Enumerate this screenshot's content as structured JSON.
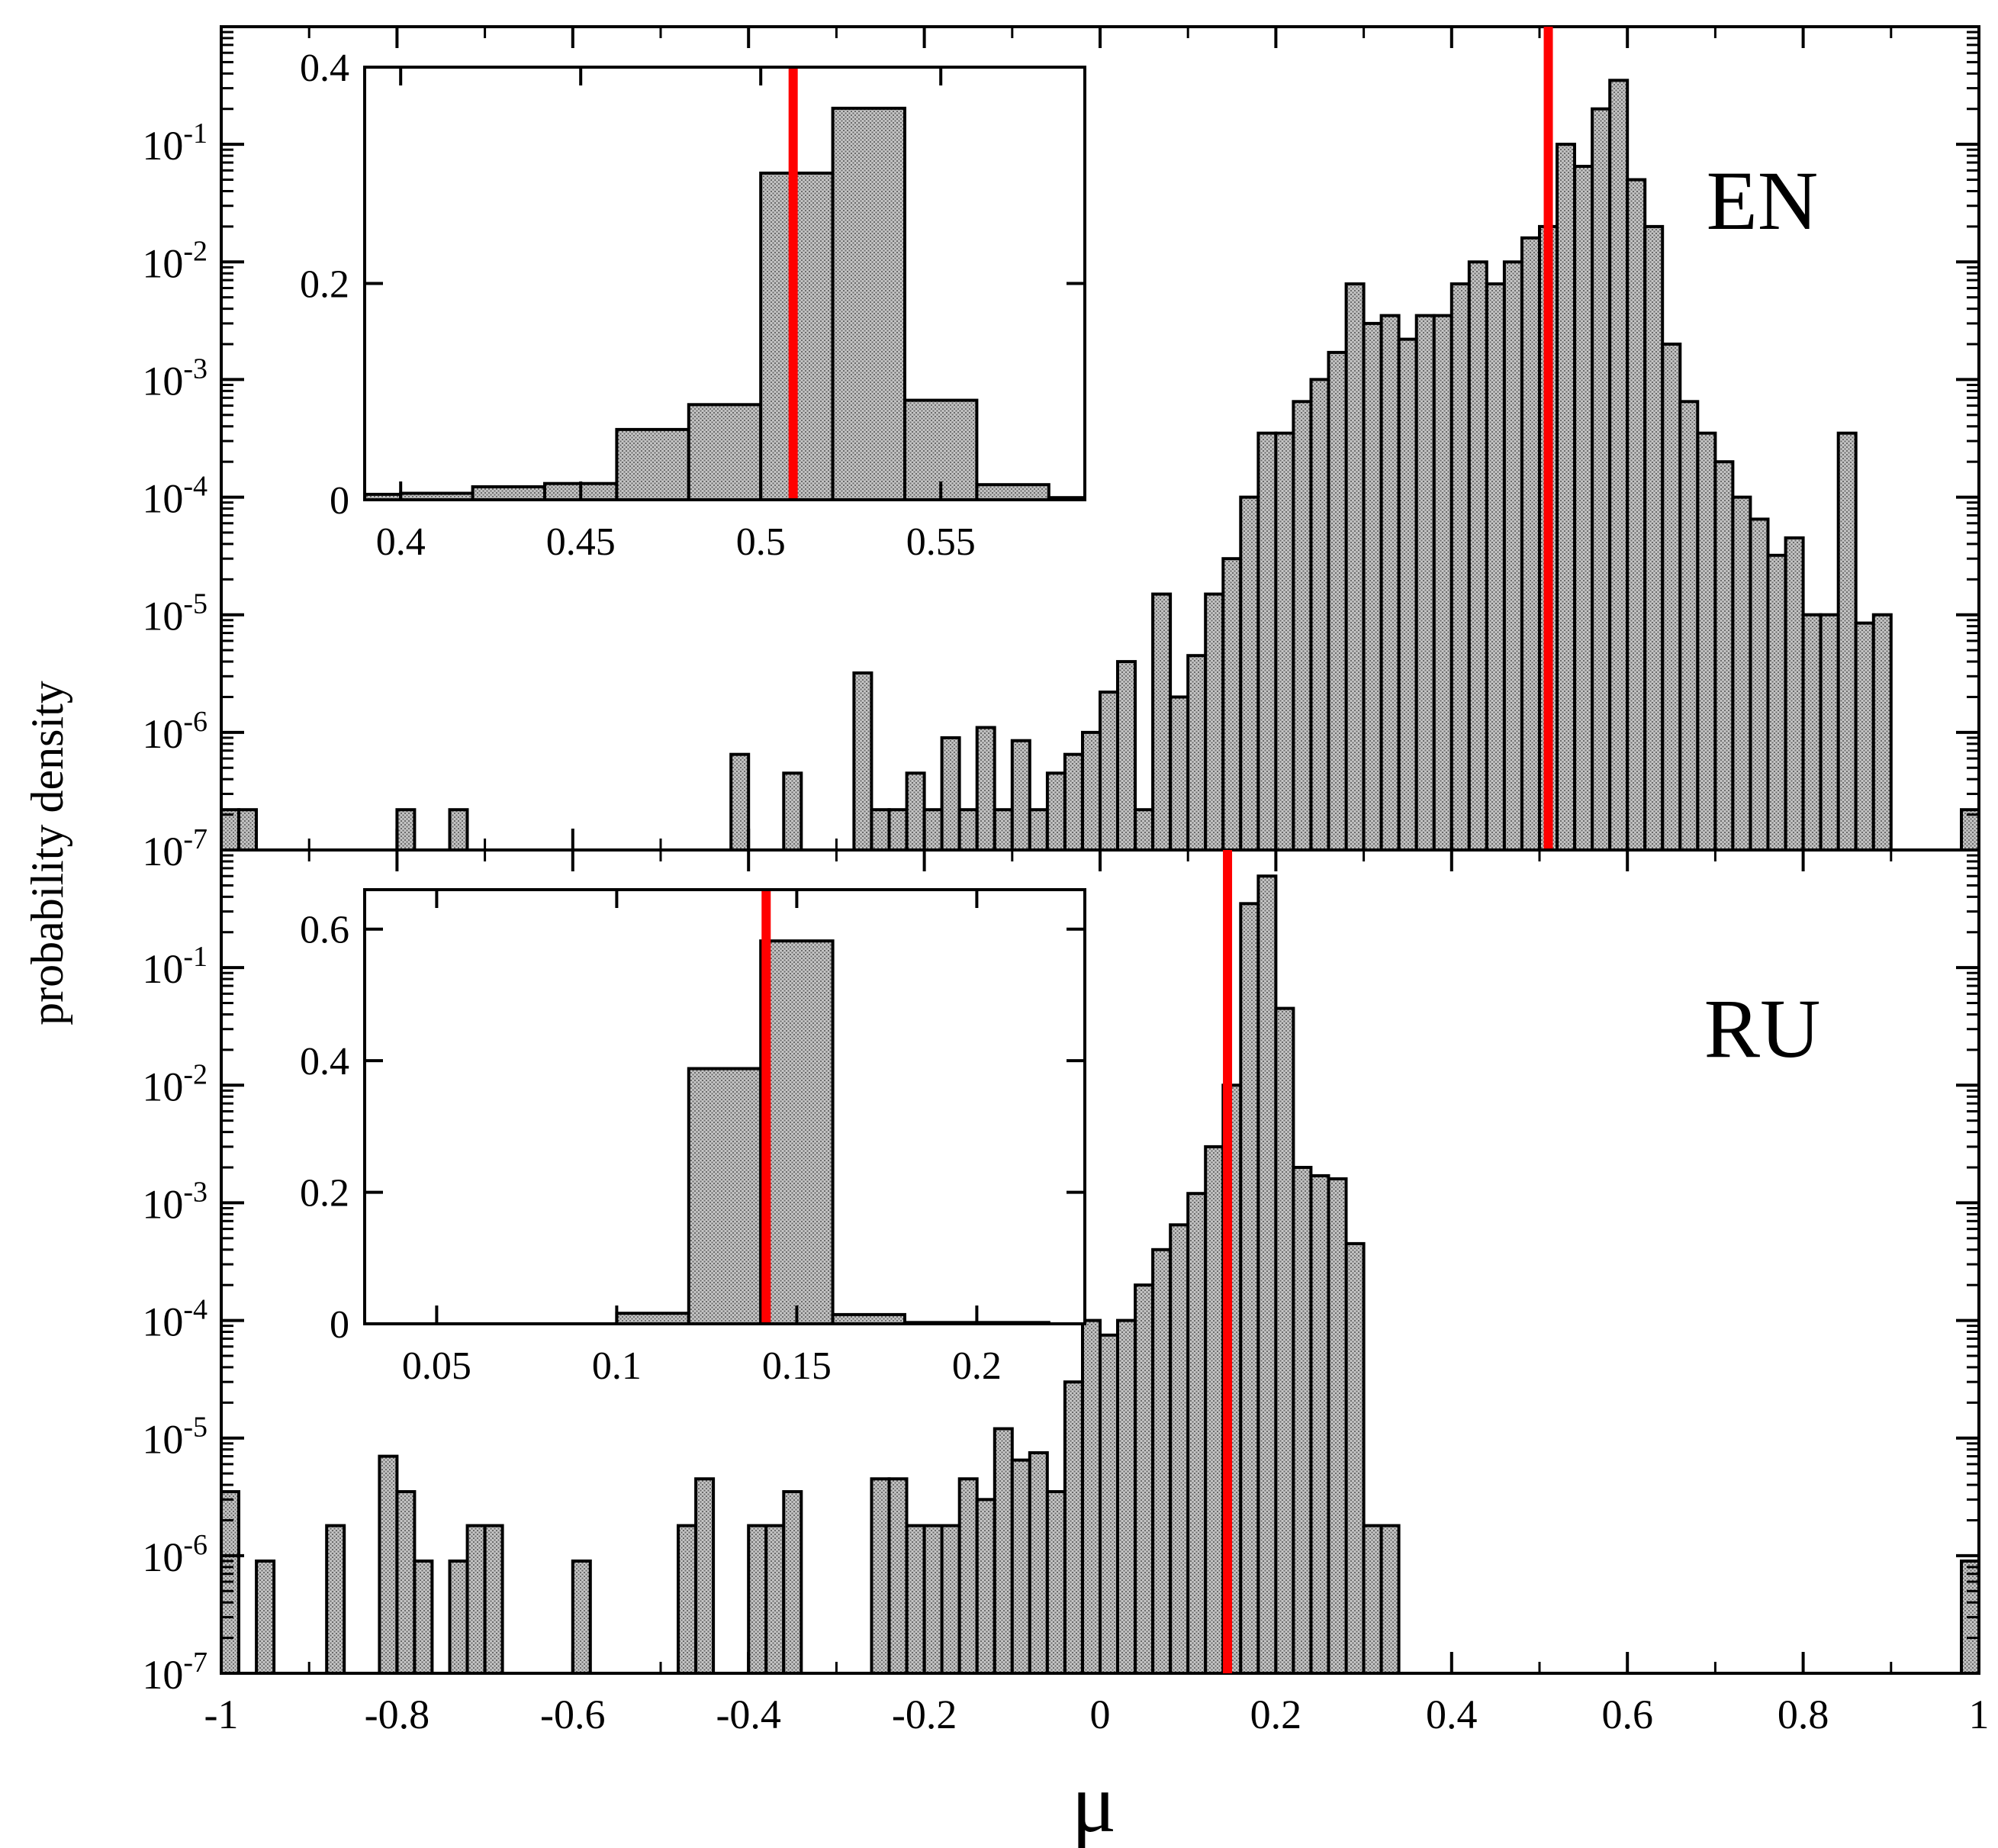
{
  "figure": {
    "ylabel": "probability density",
    "xlabel": "μ",
    "x_ticks": [
      "-1",
      "-0.8",
      "-0.6",
      "-0.4",
      "-0.2",
      "0",
      "0.2",
      "0.4",
      "0.6",
      "0.8",
      "1"
    ],
    "log_ticks": [
      {
        "base": "10",
        "exp": "-1"
      },
      {
        "base": "10",
        "exp": "-2"
      },
      {
        "base": "10",
        "exp": "-3"
      },
      {
        "base": "10",
        "exp": "-4"
      },
      {
        "base": "10",
        "exp": "-5"
      },
      {
        "base": "10",
        "exp": "-6"
      },
      {
        "base": "10",
        "exp": "-7"
      }
    ]
  },
  "colors": {
    "bar_fill": "#b5b5b5",
    "bar_stroke": "#000000",
    "marker_line": "#ff0000"
  },
  "chart_data": [
    {
      "id": "EN-main",
      "type": "bar",
      "panel_label": "EN",
      "scale": "log",
      "xlim": [
        -1,
        1
      ],
      "ylim": [
        1e-07,
        0.5
      ],
      "marker_x": 0.51,
      "bin_width": 0.02,
      "bins": [
        [
          -1.0,
          2.2e-07
        ],
        [
          -0.98,
          2.2e-07
        ],
        [
          -0.8,
          2.2e-07
        ],
        [
          -0.74,
          2.2e-07
        ],
        [
          -0.42,
          6.5e-07
        ],
        [
          -0.36,
          4.5e-07
        ],
        [
          -0.28,
          3.2e-06
        ],
        [
          -0.26,
          2.2e-07
        ],
        [
          -0.24,
          2.2e-07
        ],
        [
          -0.22,
          4.5e-07
        ],
        [
          -0.2,
          2.2e-07
        ],
        [
          -0.18,
          9e-07
        ],
        [
          -0.16,
          2.2e-07
        ],
        [
          -0.14,
          1.1e-06
        ],
        [
          -0.12,
          2.2e-07
        ],
        [
          -0.1,
          8.5e-07
        ],
        [
          -0.08,
          2.2e-07
        ],
        [
          -0.06,
          4.5e-07
        ],
        [
          -0.04,
          6.5e-07
        ],
        [
          -0.02,
          1e-06
        ],
        [
          0.0,
          2.2e-06
        ],
        [
          0.02,
          4e-06
        ],
        [
          0.04,
          2.2e-07
        ],
        [
          0.06,
          1.5e-05
        ],
        [
          0.08,
          2e-06
        ],
        [
          0.1,
          4.5e-06
        ],
        [
          0.12,
          1.5e-05
        ],
        [
          0.14,
          3e-05
        ],
        [
          0.16,
          0.0001
        ],
        [
          0.18,
          0.00035
        ],
        [
          0.2,
          0.00035
        ],
        [
          0.22,
          0.00065
        ],
        [
          0.24,
          0.001
        ],
        [
          0.26,
          0.0017
        ],
        [
          0.28,
          0.0065
        ],
        [
          0.3,
          0.003
        ],
        [
          0.32,
          0.0035
        ],
        [
          0.34,
          0.0022
        ],
        [
          0.36,
          0.0035
        ],
        [
          0.38,
          0.0035
        ],
        [
          0.4,
          0.0065
        ],
        [
          0.42,
          0.01
        ],
        [
          0.44,
          0.0065
        ],
        [
          0.46,
          0.01
        ],
        [
          0.48,
          0.016
        ],
        [
          0.5,
          0.02
        ],
        [
          0.52,
          0.1
        ],
        [
          0.54,
          0.065
        ],
        [
          0.56,
          0.2
        ],
        [
          0.58,
          0.35
        ],
        [
          0.6,
          0.05
        ],
        [
          0.62,
          0.02
        ],
        [
          0.64,
          0.002
        ],
        [
          0.66,
          0.00065
        ],
        [
          0.68,
          0.00035
        ],
        [
          0.7,
          0.0002
        ],
        [
          0.72,
          0.0001
        ],
        [
          0.74,
          6.5e-05
        ],
        [
          0.76,
          3.2e-05
        ],
        [
          0.78,
          4.5e-05
        ],
        [
          0.8,
          1e-05
        ],
        [
          0.82,
          1e-05
        ],
        [
          0.84,
          0.00035
        ],
        [
          0.86,
          8.5e-06
        ],
        [
          0.88,
          1e-05
        ],
        [
          0.98,
          2.2e-07
        ]
      ]
    },
    {
      "id": "EN-inset",
      "type": "bar",
      "scale": "linear",
      "xlim": [
        0.39,
        0.59
      ],
      "ylim": [
        0,
        0.4
      ],
      "x_ticks": [
        "0.4",
        "0.45",
        "0.5",
        "0.55"
      ],
      "y_ticks": [
        "0",
        "0.2",
        "0.4"
      ],
      "marker_x": 0.509,
      "bin_width": 0.02,
      "bins": [
        [
          0.38,
          0.005
        ],
        [
          0.4,
          0.006
        ],
        [
          0.42,
          0.012
        ],
        [
          0.44,
          0.015
        ],
        [
          0.46,
          0.065
        ],
        [
          0.48,
          0.088
        ],
        [
          0.5,
          0.302
        ],
        [
          0.52,
          0.362
        ],
        [
          0.54,
          0.092
        ],
        [
          0.56,
          0.014
        ],
        [
          0.58,
          0.002
        ]
      ]
    },
    {
      "id": "RU-main",
      "type": "bar",
      "panel_label": "RU",
      "scale": "log",
      "xlim": [
        -1,
        1
      ],
      "ylim": [
        1e-07,
        0.8
      ],
      "marker_x": 0.145,
      "bin_width": 0.02,
      "bins": [
        [
          -1.0,
          3.5e-06
        ],
        [
          -0.96,
          9e-07
        ],
        [
          -0.88,
          1.8e-06
        ],
        [
          -0.82,
          7e-06
        ],
        [
          -0.8,
          3.5e-06
        ],
        [
          -0.78,
          9e-07
        ],
        [
          -0.74,
          9e-07
        ],
        [
          -0.72,
          1.8e-06
        ],
        [
          -0.7,
          1.8e-06
        ],
        [
          -0.6,
          9e-07
        ],
        [
          -0.48,
          1.8e-06
        ],
        [
          -0.46,
          4.5e-06
        ],
        [
          -0.4,
          1.8e-06
        ],
        [
          -0.38,
          1.8e-06
        ],
        [
          -0.36,
          3.5e-06
        ],
        [
          -0.26,
          4.5e-06
        ],
        [
          -0.24,
          4.5e-06
        ],
        [
          -0.22,
          1.8e-06
        ],
        [
          -0.2,
          1.8e-06
        ],
        [
          -0.18,
          1.8e-06
        ],
        [
          -0.16,
          4.5e-06
        ],
        [
          -0.14,
          3e-06
        ],
        [
          -0.12,
          1.2e-05
        ],
        [
          -0.1,
          6.5e-06
        ],
        [
          -0.08,
          7.5e-06
        ],
        [
          -0.06,
          3.5e-06
        ],
        [
          -0.04,
          3e-05
        ],
        [
          -0.02,
          0.0001
        ],
        [
          0.0,
          7.5e-05
        ],
        [
          0.02,
          0.0001
        ],
        [
          0.04,
          0.0002
        ],
        [
          0.06,
          0.0004
        ],
        [
          0.08,
          0.00065
        ],
        [
          0.1,
          0.0012
        ],
        [
          0.12,
          0.003
        ],
        [
          0.14,
          0.01
        ],
        [
          0.16,
          0.35
        ],
        [
          0.18,
          0.6
        ],
        [
          0.2,
          0.045
        ],
        [
          0.22,
          0.002
        ],
        [
          0.24,
          0.0017
        ],
        [
          0.26,
          0.0016
        ],
        [
          0.28,
          0.00045
        ],
        [
          0.3,
          1.8e-06
        ],
        [
          0.32,
          1.8e-06
        ],
        [
          0.98,
          9e-07
        ]
      ]
    },
    {
      "id": "RU-inset",
      "type": "bar",
      "scale": "linear",
      "xlim": [
        0.03,
        0.23
      ],
      "ylim": [
        0,
        0.66
      ],
      "x_ticks": [
        "0.05",
        "0.1",
        "0.15",
        "0.2"
      ],
      "y_ticks": [
        "0",
        "0.2",
        "0.4",
        "0.6"
      ],
      "marker_x": 0.1415,
      "bin_width": 0.02,
      "bins": [
        [
          0.1,
          0.016
        ],
        [
          0.12,
          0.388
        ],
        [
          0.14,
          0.582
        ],
        [
          0.16,
          0.014
        ],
        [
          0.18,
          0.002
        ],
        [
          0.2,
          0.002
        ]
      ]
    }
  ]
}
